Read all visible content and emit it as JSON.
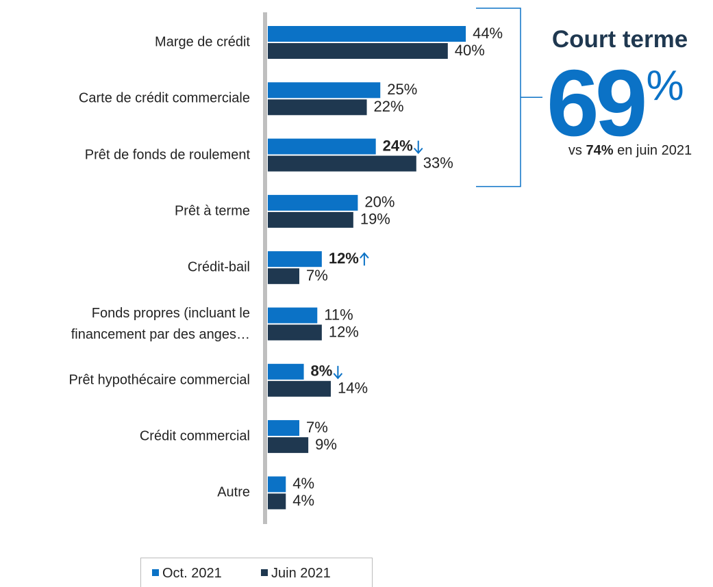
{
  "chart_data": {
    "type": "hbar",
    "categories": [
      "Marge de crédit",
      "Carte de crédit commerciale",
      "Prêt de fonds de roulement",
      "Prêt à terme",
      "Crédit-bail",
      "Fonds propres (incluant le\nfinancement par des anges…",
      "Prêt hypothécaire commercial",
      "Crédit commercial",
      "Autre"
    ],
    "series": [
      {
        "name": "Oct. 2021",
        "color": "#0b72c6",
        "values": [
          44,
          25,
          24,
          20,
          12,
          11,
          8,
          7,
          4
        ],
        "value_labels": [
          "44%",
          "25%",
          "24%",
          "20%",
          "12%",
          "11%",
          "8%",
          "7%",
          "4%"
        ]
      },
      {
        "name": "Juin 2021",
        "color": "#1f3850",
        "values": [
          40,
          22,
          33,
          19,
          7,
          12,
          14,
          9,
          4
        ],
        "value_labels": [
          "40%",
          "22%",
          "33%",
          "19%",
          "7%",
          "12%",
          "14%",
          "9%",
          "4%"
        ]
      }
    ],
    "highlights": [
      {
        "series": 0,
        "index": 2,
        "direction": "down"
      },
      {
        "series": 0,
        "index": 4,
        "direction": "up"
      },
      {
        "series": 0,
        "index": 6,
        "direction": "down"
      }
    ],
    "xlim": [
      0,
      50
    ],
    "legend": "bottom",
    "annotation": {
      "title": "Court terme",
      "value": 69,
      "unit": "%",
      "note_prefix": "vs",
      "note_value": "74%",
      "note_suffix": "en juin 2021",
      "categories": [
        0,
        2
      ]
    }
  }
}
